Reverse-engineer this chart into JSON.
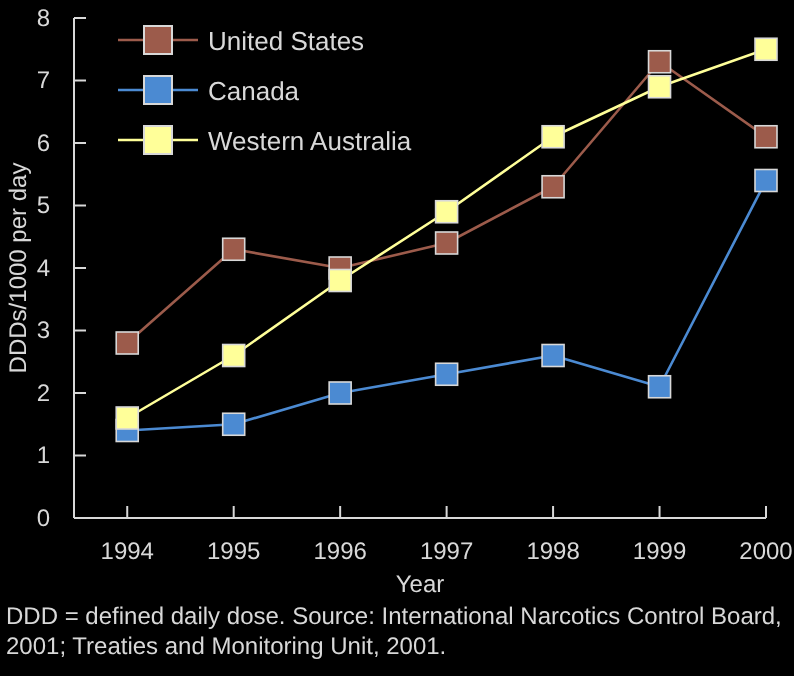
{
  "chart_data": {
    "type": "line",
    "xlabel": "Year",
    "ylabel": "DDDs/1000 per day",
    "x": [
      1994,
      1995,
      1996,
      1997,
      1998,
      1999,
      2000
    ],
    "series": [
      {
        "name": "United States",
        "color": "#9c5b4b",
        "values": [
          2.8,
          4.3,
          4.0,
          4.4,
          5.3,
          7.3,
          6.1
        ]
      },
      {
        "name": "Canada",
        "color": "#4b8ad2",
        "values": [
          1.4,
          1.5,
          2.0,
          2.3,
          2.6,
          2.1,
          5.4
        ]
      },
      {
        "name": "Western Australia",
        "color": "#ffff99",
        "values": [
          1.6,
          2.6,
          3.8,
          4.9,
          6.1,
          6.9,
          7.5
        ]
      }
    ],
    "xlim": [
      1993.5,
      2000
    ],
    "xticks": [
      1994,
      1995,
      1996,
      1997,
      1998,
      1999,
      2000
    ],
    "ylim": [
      0,
      8
    ],
    "yticks": [
      0,
      1,
      2,
      3,
      4,
      5,
      6,
      7,
      8
    ],
    "marker": "square",
    "line_style": "solid",
    "grid": false,
    "legend": "top left",
    "annotations": [
      "DDD = defined daily dose. Source: International Narcotics Control Board, 2001; Treaties and Monitoring Unit, 2001."
    ]
  }
}
